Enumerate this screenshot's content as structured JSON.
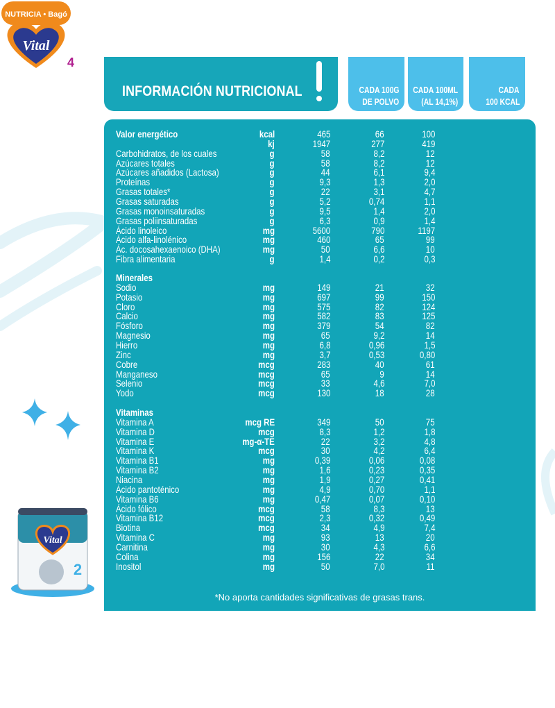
{
  "brand": {
    "company": "NUTRICIA • Bagó",
    "product": "Vital",
    "stage": "4",
    "can_stage": "2"
  },
  "colors": {
    "panel": "#12a5b8",
    "header": "#4dbfea",
    "title_box": "#17a6b9",
    "logo_orange": "#f08a1c",
    "logo_navy": "#2b3a8f"
  },
  "title": "INFORMACIÓN NUTRICIONAL",
  "columns": [
    {
      "line1": "CADA 100G",
      "line2": "DE POLVO"
    },
    {
      "line1": "CADA 100ML",
      "line2": "(AL 14,1%)"
    },
    {
      "line1": "CADA",
      "line2": "100 KCAL"
    }
  ],
  "sections": [
    {
      "heading": "",
      "rows": [
        {
          "name": "Valor energético",
          "unit": "kcal",
          "v": [
            "465",
            "66",
            "100"
          ],
          "bold": true
        },
        {
          "name": "",
          "unit": "kj",
          "v": [
            "1947",
            "277",
            "419"
          ]
        },
        {
          "name": "Carbohidratos, de los cuales",
          "unit": "g",
          "v": [
            "58",
            "8,2",
            "12"
          ]
        },
        {
          "name": "Azúcares totales",
          "unit": "g",
          "v": [
            "58",
            "8,2",
            "12"
          ]
        },
        {
          "name": "Azúcares añadidos (Lactosa)",
          "unit": "g",
          "v": [
            "44",
            "6,1",
            "9,4"
          ]
        },
        {
          "name": "Proteínas",
          "unit": "g",
          "v": [
            "9,3",
            "1,3",
            "2,0"
          ]
        },
        {
          "name": "Grasas totales*",
          "unit": "g",
          "v": [
            "22",
            "3,1",
            "4,7"
          ]
        },
        {
          "name": "Grasas saturadas",
          "unit": "g",
          "v": [
            "5,2",
            "0,74",
            "1,1"
          ]
        },
        {
          "name": "Grasas monoinsaturadas",
          "unit": "g",
          "v": [
            "9,5",
            "1,4",
            "2,0"
          ]
        },
        {
          "name": "Grasas poliinsaturadas",
          "unit": "g",
          "v": [
            "6,3",
            "0,9",
            "1,4"
          ]
        },
        {
          "name": "Ácido linoleico",
          "unit": "mg",
          "v": [
            "5600",
            "790",
            "1197"
          ]
        },
        {
          "name": "Ácido alfa-linolénico",
          "unit": "mg",
          "v": [
            "460",
            "65",
            "99"
          ]
        },
        {
          "name": "Ác. docosahexaenoico (DHA)",
          "unit": "mg",
          "v": [
            "50",
            "6,6",
            "10"
          ]
        },
        {
          "name": "Fibra alimentaria",
          "unit": "g",
          "v": [
            "1,4",
            "0,2",
            "0,3"
          ]
        }
      ]
    },
    {
      "heading": "Minerales",
      "rows": [
        {
          "name": "Sodio",
          "unit": "mg",
          "v": [
            "149",
            "21",
            "32"
          ]
        },
        {
          "name": "Potasio",
          "unit": "mg",
          "v": [
            "697",
            "99",
            "150"
          ]
        },
        {
          "name": "Cloro",
          "unit": "mg",
          "v": [
            "575",
            "82",
            "124"
          ]
        },
        {
          "name": "Calcio",
          "unit": "mg",
          "v": [
            "582",
            "83",
            "125"
          ]
        },
        {
          "name": "Fósforo",
          "unit": "mg",
          "v": [
            "379",
            "54",
            "82"
          ]
        },
        {
          "name": "Magnesio",
          "unit": "mg",
          "v": [
            "65",
            "9,2",
            "14"
          ]
        },
        {
          "name": "Hierro",
          "unit": "mg",
          "v": [
            "6,8",
            "0,96",
            "1,5"
          ]
        },
        {
          "name": "Zinc",
          "unit": "mg",
          "v": [
            "3,7",
            "0,53",
            "0,80"
          ]
        },
        {
          "name": "Cobre",
          "unit": "mcg",
          "v": [
            "283",
            "40",
            "61"
          ]
        },
        {
          "name": "Manganeso",
          "unit": "mcg",
          "v": [
            "65",
            "9",
            "14"
          ]
        },
        {
          "name": "Selenio",
          "unit": "mcg",
          "v": [
            "33",
            "4,6",
            "7,0"
          ]
        },
        {
          "name": "Yodo",
          "unit": "mcg",
          "v": [
            "130",
            "18",
            "28"
          ]
        }
      ]
    },
    {
      "heading": "Vitaminas",
      "rows": [
        {
          "name": "Vitamina A",
          "unit": "mcg RE",
          "v": [
            "349",
            "50",
            "75"
          ]
        },
        {
          "name": "Vitamina D",
          "unit": "mcg",
          "v": [
            "8,3",
            "1,2",
            "1,8"
          ]
        },
        {
          "name": "Vitamina E",
          "unit": "mg-α-TE",
          "v": [
            "22",
            "3,2",
            "4,8"
          ]
        },
        {
          "name": "Vitamina K",
          "unit": "mcg",
          "v": [
            "30",
            "4,2",
            "6,4"
          ]
        },
        {
          "name": "Vitamina B1",
          "unit": "mg",
          "v": [
            "0,39",
            "0,06",
            "0,08"
          ]
        },
        {
          "name": "Vitamina B2",
          "unit": "mg",
          "v": [
            "1,6",
            "0,23",
            "0,35"
          ]
        },
        {
          "name": "Niacina",
          "unit": "mg",
          "v": [
            "1,9",
            "0,27",
            "0,41"
          ]
        },
        {
          "name": "Ácido pantoténico",
          "unit": "mg",
          "v": [
            "4,9",
            "0,70",
            "1,1"
          ]
        },
        {
          "name": "Vitamina B6",
          "unit": "mg",
          "v": [
            "0,47",
            "0,07",
            "0,10"
          ]
        },
        {
          "name": "Ácido fólico",
          "unit": "mcg",
          "v": [
            "58",
            "8,3",
            "13"
          ]
        },
        {
          "name": "Vitamina B12",
          "unit": "mcg",
          "v": [
            "2,3",
            "0,32",
            "0,49"
          ]
        },
        {
          "name": "Biotina",
          "unit": "mcg",
          "v": [
            "34",
            "4,9",
            "7,4"
          ]
        },
        {
          "name": "Vitamina C",
          "unit": "mg",
          "v": [
            "93",
            "13",
            "20"
          ]
        },
        {
          "name": "Carnitina",
          "unit": "mg",
          "v": [
            "30",
            "4,3",
            "6,6"
          ]
        },
        {
          "name": "Colina",
          "unit": "mg",
          "v": [
            "156",
            "22",
            "34"
          ]
        },
        {
          "name": "Inositol",
          "unit": "mg",
          "v": [
            "50",
            "7,0",
            "11"
          ]
        }
      ]
    }
  ],
  "footnote": "*No aporta cantidades significativas de grasas trans."
}
